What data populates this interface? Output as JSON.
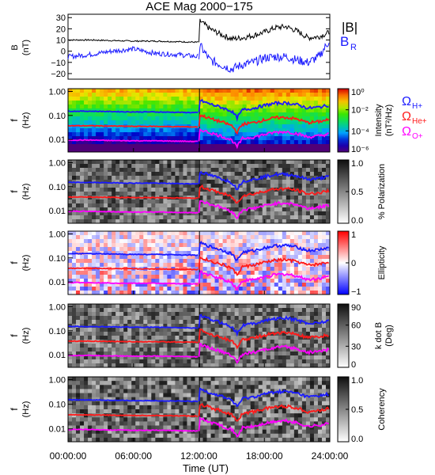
{
  "title": "ACE Mag 2000−175",
  "xlabel": "Time (UT)",
  "colors": {
    "btotal": "#000000",
    "br": "#1a1aff",
    "h": "#1a1aff",
    "he": "#ff1a1a",
    "o": "#ff00ff"
  },
  "chart_data": [
    {
      "type": "line",
      "panel": "magnetic-field",
      "ylabel": "B",
      "yunit": "(nT)",
      "ylim": [
        -25,
        33
      ],
      "yticks": [
        "30",
        "20",
        "10",
        "0",
        "−10",
        "−20"
      ],
      "ytick_values": [
        30,
        20,
        10,
        0,
        -10,
        -20
      ],
      "legend": {
        "btotal": "|B|",
        "br": "B",
        "br_sub": "R"
      },
      "x": [
        0,
        2,
        4,
        6,
        8,
        10,
        12,
        12.1,
        13,
        14,
        15,
        16,
        17,
        18,
        19,
        20,
        21,
        22,
        23,
        24
      ],
      "series": [
        {
          "name": "|B|",
          "color_key": "btotal",
          "values": [
            10,
            10,
            9.5,
            9,
            9,
            8.5,
            8,
            27,
            20,
            15,
            11,
            12,
            14,
            17,
            21,
            22,
            18,
            12,
            13,
            17
          ]
        },
        {
          "name": "B_R",
          "color_key": "br",
          "values": [
            -5,
            -3,
            0,
            2,
            -2,
            -3,
            -5,
            5,
            -8,
            -12,
            -16,
            -12,
            -10,
            -6,
            -5,
            -5,
            -8,
            -10,
            -5,
            10
          ]
        }
      ]
    },
    {
      "type": "heatmap",
      "panel": "intensity",
      "ylabel": "f",
      "yunit": "(Hz)",
      "colorbar": {
        "label": "Intensity",
        "unit": "(nT²/Hz)",
        "ticks": [
          "10⁰",
          "10⁻²",
          "10⁻⁴",
          "10⁻⁶"
        ]
      },
      "legend": [
        {
          "label": "Ω",
          "sub": "H+",
          "color_key": "h"
        },
        {
          "label": "Ω",
          "sub": "He+",
          "color_key": "he"
        },
        {
          "label": "Ω",
          "sub": "O+",
          "color_key": "o"
        }
      ]
    },
    {
      "type": "heatmap",
      "panel": "polarization",
      "ylabel": "f",
      "yunit": "(Hz)",
      "colorbar": {
        "label": "% Polarization",
        "ticks": [
          "1.0",
          "0.5",
          "0.0"
        ]
      }
    },
    {
      "type": "heatmap",
      "panel": "ellipticity",
      "ylabel": "f",
      "yunit": "(Hz)",
      "colorbar": {
        "label": "Ellipticity",
        "ticks": [
          "1",
          "0",
          "−1"
        ]
      }
    },
    {
      "type": "heatmap",
      "panel": "kdotb",
      "ylabel": "f",
      "yunit": "(Hz)",
      "colorbar": {
        "label": "k dot B",
        "unit": "(Deg)",
        "ticks": [
          "90",
          "60",
          "30",
          "0"
        ]
      }
    },
    {
      "type": "heatmap",
      "panel": "coherency",
      "ylabel": "f",
      "yunit": "(Hz)",
      "colorbar": {
        "label": "Coherency",
        "ticks": [
          "1.0",
          "0.5",
          "0.0"
        ]
      }
    }
  ],
  "freq_axis": {
    "ylim": [
      0.003,
      1.3
    ],
    "yticks": [
      "1.00",
      "0.10",
      "0.01"
    ],
    "ytick_values": [
      1.0,
      0.1,
      0.01
    ]
  },
  "time_axis": {
    "xlim": [
      0,
      24
    ],
    "xticks": [
      "00:00:00",
      "06:00:00",
      "12:00:00",
      "18:00:00",
      "24:00:00"
    ],
    "xtick_values": [
      0,
      6,
      12,
      18,
      24
    ]
  },
  "gyrofrequencies": {
    "x": [
      0,
      2,
      4,
      6,
      8,
      10,
      12,
      12.1,
      13,
      14,
      15,
      15.5,
      16,
      17,
      18,
      19,
      20,
      21,
      22,
      23,
      24
    ],
    "h": [
      0.15,
      0.15,
      0.145,
      0.14,
      0.14,
      0.135,
      0.13,
      0.42,
      0.3,
      0.22,
      0.15,
      0.08,
      0.17,
      0.2,
      0.26,
      0.32,
      0.33,
      0.28,
      0.2,
      0.22,
      0.27
    ],
    "he": [
      0.037,
      0.037,
      0.036,
      0.035,
      0.035,
      0.034,
      0.033,
      0.105,
      0.075,
      0.055,
      0.038,
      0.02,
      0.043,
      0.05,
      0.065,
      0.08,
      0.083,
      0.07,
      0.05,
      0.055,
      0.068
    ],
    "o": [
      0.0094,
      0.0094,
      0.009,
      0.0088,
      0.0088,
      0.0085,
      0.0082,
      0.026,
      0.019,
      0.014,
      0.0095,
      0.005,
      0.011,
      0.0125,
      0.016,
      0.02,
      0.021,
      0.0175,
      0.0125,
      0.014,
      0.017
    ]
  }
}
